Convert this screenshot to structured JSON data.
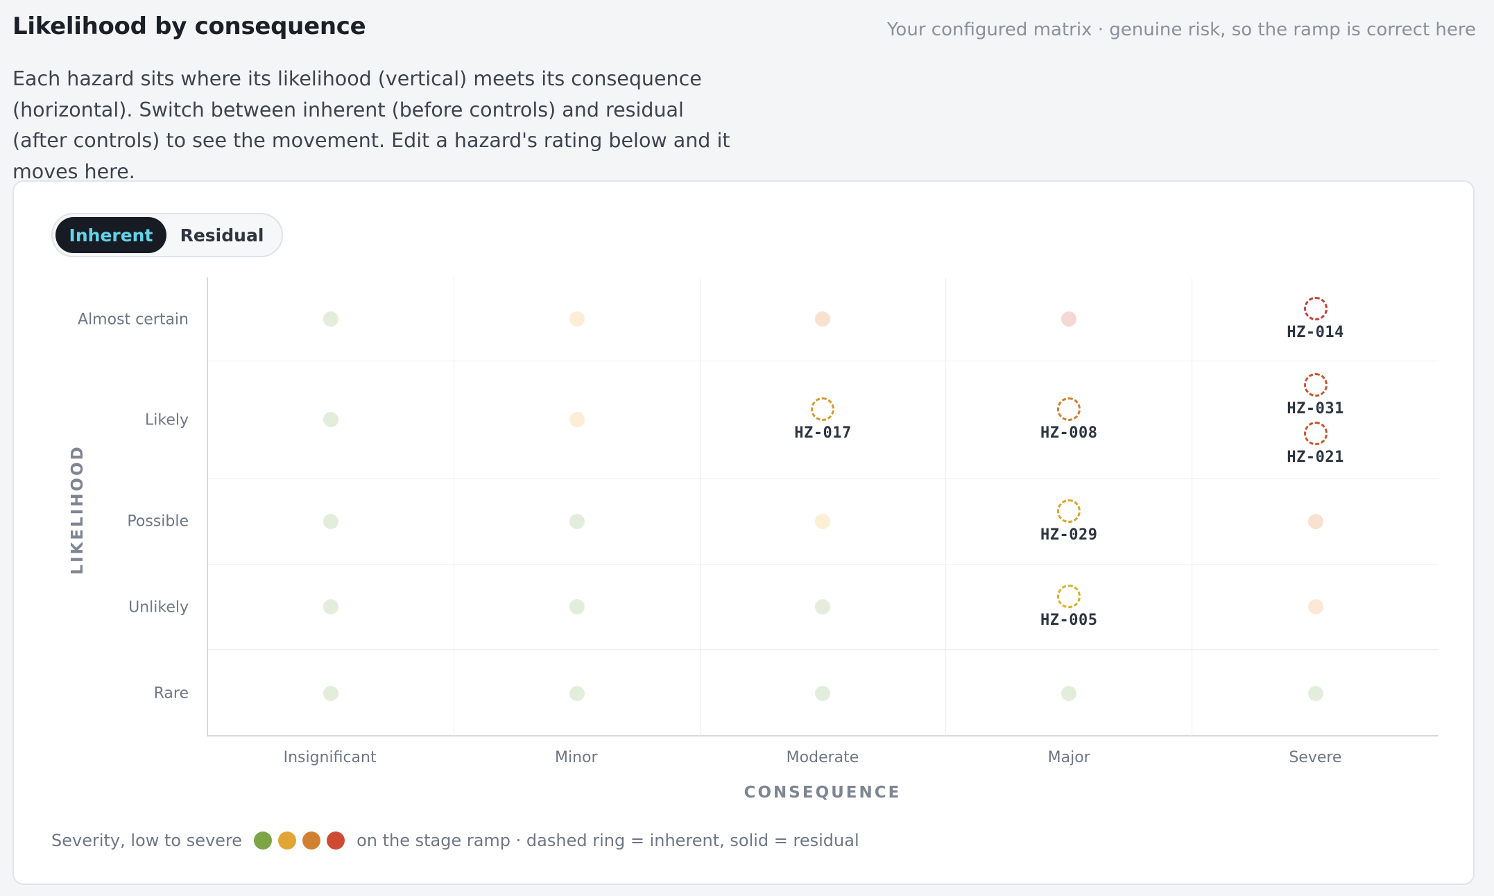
{
  "header": {
    "title": "Likelihood by consequence",
    "note": "Your configured matrix · genuine risk, so the ramp is correct here",
    "description": "Each hazard sits where its likelihood (vertical) meets its consequence (horizontal). Switch between inherent (before controls) and residual (after controls) to see the movement. Edit a hazard's rating below and it moves here."
  },
  "toggle": {
    "active": "Inherent",
    "inactive": "Residual"
  },
  "matrix": {
    "y_title": "LIKELIHOOD",
    "x_title": "CONSEQUENCE",
    "rows": [
      "Almost certain",
      "Likely",
      "Possible",
      "Unlikely",
      "Rare"
    ],
    "cols": [
      "Insignificant",
      "Minor",
      "Moderate",
      "Major",
      "Severe"
    ],
    "cell_colors": [
      [
        "#e2eedb",
        "#fbedd6",
        "#f8e1cf",
        "#f4d8d4",
        null
      ],
      [
        "#e2eedb",
        "#fbedd6",
        null,
        null,
        null
      ],
      [
        "#e2eedb",
        "#e2eedb",
        "#fcefd3",
        null,
        "#f8e1cf"
      ],
      [
        "#e2eedb",
        "#e2eedb",
        "#e6ecdc",
        null,
        "#fbe9d6"
      ],
      [
        "#e2eedb",
        "#e2eedb",
        "#e2eedb",
        "#e2eedb",
        "#e2eedb"
      ]
    ],
    "hazards": [
      {
        "id": "HZ-014",
        "row": 0,
        "col": 4,
        "color": "#c2433a"
      },
      {
        "id": "HZ-017",
        "row": 1,
        "col": 2,
        "color": "#d69a2d"
      },
      {
        "id": "HZ-008",
        "row": 1,
        "col": 3,
        "color": "#cf7f2e"
      },
      {
        "id": "HZ-031",
        "row": 1,
        "col": 4,
        "color": "#c9562f"
      },
      {
        "id": "HZ-021",
        "row": 1,
        "col": 4,
        "color": "#c9562f"
      },
      {
        "id": "HZ-029",
        "row": 2,
        "col": 3,
        "color": "#d9a52e"
      },
      {
        "id": "HZ-005",
        "row": 3,
        "col": 3,
        "color": "#d5b12d"
      }
    ]
  },
  "legend": {
    "prefix": "Severity, low to severe",
    "swatches": [
      "#7ea545",
      "#e0a532",
      "#d08030",
      "#cf4a33"
    ],
    "suffix": "on the stage ramp · dashed ring = inherent, solid = residual"
  }
}
